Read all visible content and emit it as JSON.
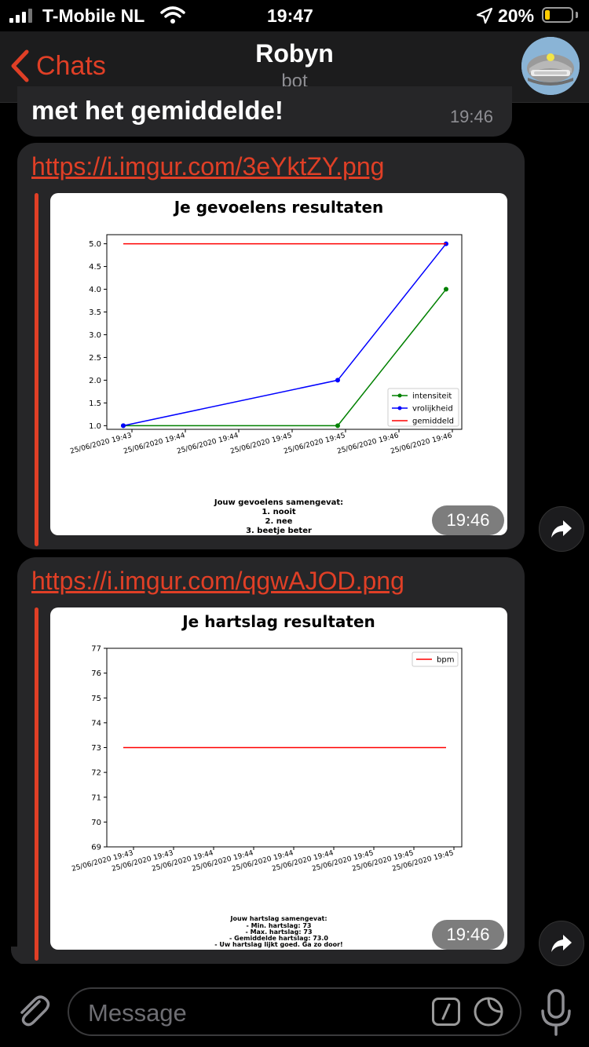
{
  "status": {
    "carrier": "T-Mobile NL",
    "time": "19:47",
    "battery": "20%"
  },
  "header": {
    "back_label": "Chats",
    "title": "Robyn",
    "subtitle": "bot"
  },
  "messages": [
    {
      "text": "met het gemiddelde!",
      "time": "19:46"
    },
    {
      "link": "https://i.imgur.com/3eYktZY.png",
      "time": "19:46"
    },
    {
      "link": "https://i.imgur.com/qgwAJOD.png",
      "time": "19:46"
    }
  ],
  "chart_data": [
    {
      "type": "line",
      "title": "Je gevoelens resultaten",
      "x": [
        "25/06/2020 19:43",
        "25/06/2020 19:45",
        "25/06/2020 19:46"
      ],
      "xticks": [
        "25/06/2020 19:43",
        "25/06/2020 19:44",
        "25/06/2020 19:44",
        "25/06/2020 19:45",
        "25/06/2020 19:45",
        "25/06/2020 19:46",
        "25/06/2020 19:46"
      ],
      "series": [
        {
          "name": "intensiteit",
          "color": "#008000",
          "values": [
            1.0,
            1.0,
            4.0
          ]
        },
        {
          "name": "vrolijkheid",
          "color": "#0000ff",
          "values": [
            1.0,
            2.0,
            5.0
          ]
        },
        {
          "name": "gemiddeld",
          "color": "#ff0000",
          "values": [
            5.0,
            5.0,
            5.0
          ]
        }
      ],
      "ylim": [
        0.92,
        5.2
      ],
      "yticks": [
        1.0,
        1.5,
        2.0,
        2.5,
        3.0,
        3.5,
        4.0,
        4.5,
        5.0
      ],
      "legend": "bottom-right",
      "summary_title": "Jouw gevoelens samengevat:",
      "summary_lines": [
        "1. nooit",
        "2. nee",
        "3. beetje beter"
      ]
    },
    {
      "type": "line",
      "title": "Je hartslag resultaten",
      "xticks": [
        "25/06/2020 19:43",
        "25/06/2020 19:43",
        "25/06/2020 19:44",
        "25/06/2020 19:44",
        "25/06/2020 19:44",
        "25/06/2020 19:44",
        "25/06/2020 19:45",
        "25/06/2020 19:45",
        "25/06/2020 19:45"
      ],
      "series": [
        {
          "name": "bpm",
          "color": "#ff0000",
          "values": [
            73,
            73
          ]
        }
      ],
      "ylim": [
        69,
        77
      ],
      "yticks": [
        69,
        70,
        71,
        72,
        73,
        74,
        75,
        76,
        77
      ],
      "legend": "top-right",
      "summary_title": "Jouw hartslag samengevat:",
      "summary_lines": [
        "- Min. hartslag: 73",
        "- Max. hartslag: 73",
        "- Gemiddelde hartslag: 73.0",
        "- Uw hartslag lijkt goed. Ga zo door!"
      ]
    }
  ],
  "input": {
    "placeholder": "Message"
  }
}
